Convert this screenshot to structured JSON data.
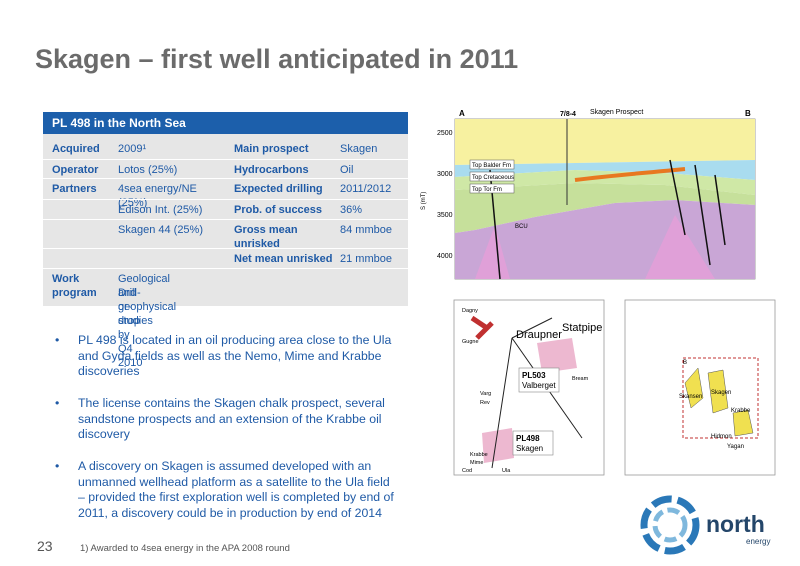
{
  "header": {
    "title": "Skagen – first well anticipated in 2011"
  },
  "table": {
    "title": "PL 498 in the North Sea",
    "rows": [
      {
        "label": "Acquired",
        "value": "2009¹",
        "label2": "Main prospect",
        "value2": "Skagen"
      },
      {
        "label": "Operator",
        "value": "Lotos (25%)",
        "label2": "Hydrocarbons",
        "value2": "Oil"
      },
      {
        "label": "Partners",
        "value": "4sea energy/NE (25%)",
        "label2": "Expected drilling",
        "value2": "2011/2012"
      },
      {
        "value": "Edison Int. (25%)",
        "label2": "Prob. of success",
        "value2": "36%"
      },
      {
        "value": "Skagen 44 (25%)",
        "label2": "Gross mean unrisked",
        "value2": "84 mmboe"
      },
      {
        "label2": "Net mean unrisked",
        "value2": "21 mmboe"
      },
      {
        "label": "Work program",
        "value": [
          "Geological and geophysical studies",
          "Drill-or-drop by Q4 2010"
        ]
      }
    ]
  },
  "bullets": [
    "PL 498 is located in an oil producing area close to the Ula and Gyda fields as well as the Nemo, Mime and Krabbe discoveries",
    "The license contains the Skagen chalk prospect, several sandstone prospects and an extension of the Krabbe oil discovery",
    "A discovery on Skagen is assumed developed with an unmanned wellhead platform as a satellite to the Ula field – provided the first exploration well is completed by end of 2011, a discovery could be in production by end of 2014"
  ],
  "cross_section": {
    "left": "A",
    "right": "B",
    "well": "7/8-4",
    "prospect": "Skagen Prospect",
    "axis_label": "S (mT)",
    "depths": [
      "2500",
      "3000",
      "3500",
      "4000"
    ],
    "horizons": [
      "Top Balder Fm",
      "Top Cretaceous",
      "Top Tor Fm",
      "BCU"
    ]
  },
  "map_left": {
    "labels": [
      "Dagny",
      "Draupner",
      "Statpipe",
      "Gugne",
      "Varg",
      "Rev",
      "Bream",
      "Krabbe",
      "Mime",
      "Cod",
      "Ula"
    ],
    "blocks": [
      {
        "name": "PL503",
        "sub": "Valberget"
      },
      {
        "name": "PL498",
        "sub": "Skagen"
      }
    ]
  },
  "map_right": {
    "labels": [
      "B",
      "Skansen",
      "Skagen",
      "Krabbe",
      "Hidmon",
      "Yagan"
    ]
  },
  "footer": {
    "page": "23",
    "note": "1) Awarded to 4sea energy in the APA 2008 round"
  },
  "logo": {
    "name": "north",
    "sub": "energy"
  }
}
